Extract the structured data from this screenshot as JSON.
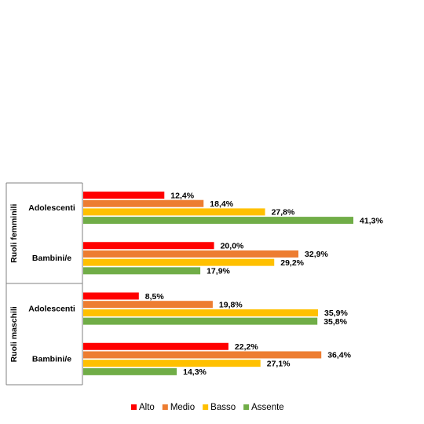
{
  "chart_data": {
    "type": "bar",
    "orientation": "horizontal",
    "category_groups": [
      "Ruoli femminili",
      "Ruoli maschili"
    ],
    "categories": [
      "Adolescenti",
      "Bambini/e",
      "Adolescenti",
      "Bambini/e"
    ],
    "series": [
      {
        "name": "Alto",
        "color": "#ff0000",
        "values": [
          12.4,
          20.0,
          8.5,
          22.2
        ],
        "value_labels": [
          "12,4%",
          "20,0%",
          "8,5%",
          "22,2%"
        ]
      },
      {
        "name": "Medio",
        "color": "#ed7d31",
        "values": [
          18.4,
          32.9,
          19.8,
          36.4
        ],
        "value_labels": [
          "18,4%",
          "32,9%",
          "19,8%",
          "36,4%"
        ]
      },
      {
        "name": "Basso",
        "color": "#ffc000",
        "values": [
          27.8,
          29.2,
          35.9,
          27.1
        ],
        "value_labels": [
          "27,8%",
          "29,2%",
          "35,9%",
          "27,1%"
        ]
      },
      {
        "name": "Assente",
        "color": "#70ad47",
        "values": [
          41.3,
          17.9,
          35.8,
          14.3
        ],
        "value_labels": [
          "41,3%",
          "17,9%",
          "35,8%",
          "14,3%"
        ]
      }
    ]
  }
}
